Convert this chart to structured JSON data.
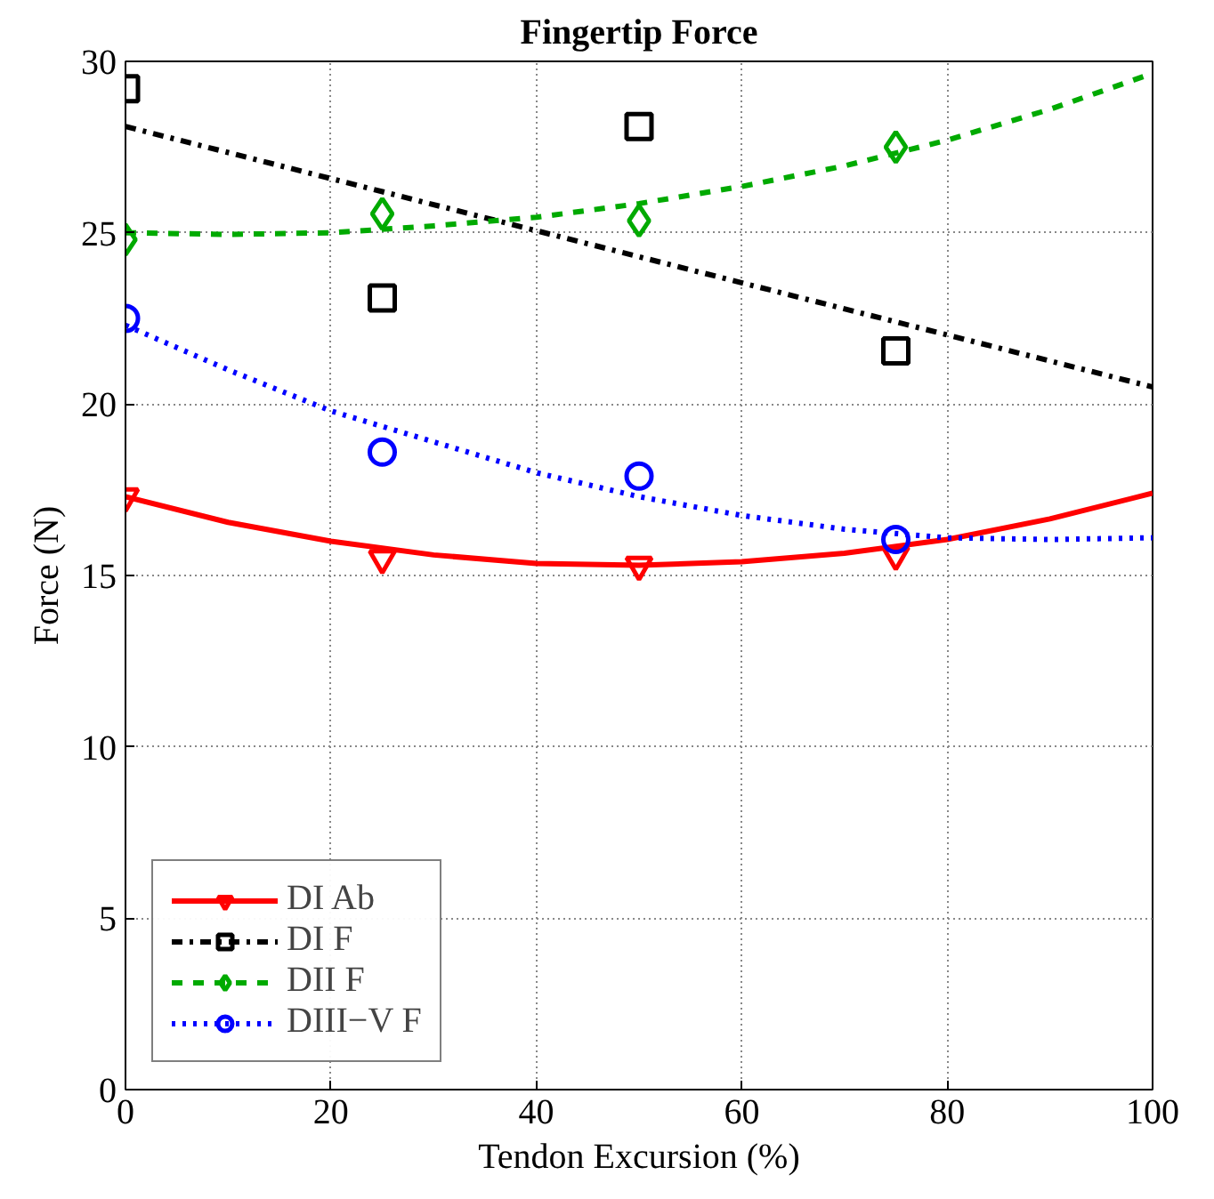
{
  "chart_data": {
    "type": "scatter",
    "title": "Fingertip Force",
    "xlabel": "Tendon Excursion (%)",
    "ylabel": "Force (N)",
    "xlim": [
      0,
      100
    ],
    "ylim": [
      0,
      30
    ],
    "xticks": [
      0,
      20,
      40,
      60,
      80,
      100
    ],
    "yticks": [
      0,
      5,
      10,
      15,
      20,
      25,
      30
    ],
    "grid": true,
    "legend": "bottom left",
    "series": [
      {
        "name": "DI Ab",
        "marker": "triangle",
        "color": "#ff0000",
        "x": [
          0,
          25,
          50,
          75
        ],
        "values": [
          17.3,
          15.5,
          15.3,
          15.6
        ]
      },
      {
        "type": "line",
        "line_style": "solid",
        "color": "#ff0000",
        "x": [
          0,
          10,
          20,
          30,
          40,
          50,
          60,
          70,
          80,
          90,
          100
        ],
        "values": [
          17.3,
          16.55,
          16.0,
          15.6,
          15.35,
          15.3,
          15.4,
          15.65,
          16.05,
          16.65,
          17.4
        ]
      },
      {
        "name": "DI F",
        "marker": "square",
        "color": "#000000",
        "x": [
          0,
          25,
          50,
          75
        ],
        "values": [
          29.2,
          23.1,
          28.1,
          21.55
        ]
      },
      {
        "type": "line",
        "line_style": "dashdot",
        "color": "#000000",
        "x": [
          0,
          100
        ],
        "values": [
          28.1,
          20.5
        ]
      },
      {
        "name": "DII F",
        "marker": "diamond",
        "color": "#00aa00",
        "x": [
          0,
          25,
          50,
          75
        ],
        "values": [
          24.8,
          25.55,
          25.35,
          27.5
        ]
      },
      {
        "type": "line",
        "line_style": "dashed",
        "color": "#00aa00",
        "x": [
          0,
          10,
          20,
          30,
          40,
          50,
          60,
          70,
          80,
          90,
          100
        ],
        "values": [
          25.0,
          24.95,
          25.0,
          25.2,
          25.45,
          25.85,
          26.35,
          26.95,
          27.7,
          28.6,
          29.65
        ]
      },
      {
        "name": "DIII−V F",
        "marker": "circle",
        "color": "#0000ff",
        "x": [
          0,
          25,
          50,
          75
        ],
        "values": [
          22.5,
          18.6,
          17.9,
          16.05
        ]
      },
      {
        "type": "line",
        "line_style": "dotted",
        "color": "#0000ff",
        "x": [
          0,
          10,
          20,
          30,
          40,
          50,
          60,
          70,
          80,
          90,
          100
        ],
        "values": [
          22.3,
          21.0,
          19.8,
          18.9,
          18.0,
          17.3,
          16.75,
          16.35,
          16.1,
          16.05,
          16.1
        ]
      }
    ]
  }
}
